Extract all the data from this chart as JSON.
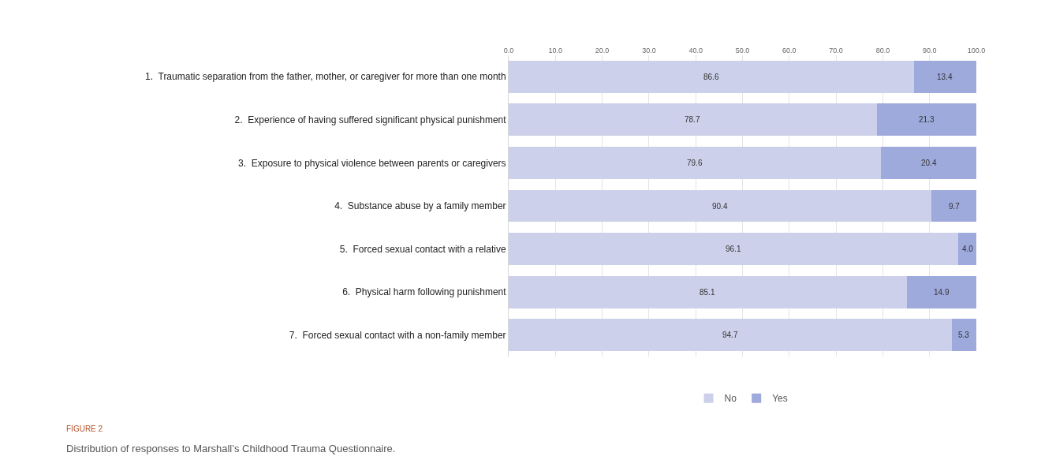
{
  "chart_data": {
    "type": "bar",
    "orientation": "horizontal",
    "stacked": true,
    "categories": [
      "1.  Traumatic separation from the father, mother, or caregiver for more than one month",
      "2.  Experience of having suffered significant physical punishment",
      "3.  Exposure to physical violence between parents or caregivers",
      "4.  Substance abuse by a family member",
      "5.  Forced sexual contact with a relative",
      "6.  Physical harm following punishment",
      "7.  Forced sexual contact with a non-family member"
    ],
    "series": [
      {
        "name": "No",
        "color": "#ccd0ea",
        "values": [
          86.6,
          78.7,
          79.6,
          90.4,
          96.1,
          85.1,
          94.7
        ],
        "value_labels": [
          "86.6",
          "78.7",
          "79.6",
          "90.4",
          "96.1",
          "85.1",
          "94.7"
        ]
      },
      {
        "name": "Yes",
        "color": "#9ea9dc",
        "values": [
          13.4,
          21.3,
          20.4,
          9.7,
          4.0,
          14.9,
          5.3
        ],
        "value_labels": [
          "13.4",
          "21.3",
          "20.4",
          "9.7",
          "4.0",
          "14.9",
          "5.3"
        ]
      }
    ],
    "xlim": [
      0,
      100
    ],
    "xticks": [
      {
        "value": 0,
        "label": "0.0"
      },
      {
        "value": 10,
        "label": "10.0"
      },
      {
        "value": 20,
        "label": "20.0"
      },
      {
        "value": 30,
        "label": "30.0"
      },
      {
        "value": 40,
        "label": "40.0"
      },
      {
        "value": 50,
        "label": "50.0"
      },
      {
        "value": 60,
        "label": "60.0"
      },
      {
        "value": 70,
        "label": "70.0"
      },
      {
        "value": 80,
        "label": "80.0"
      },
      {
        "value": 90,
        "label": "90.0"
      },
      {
        "value": 100,
        "label": "100.0"
      }
    ],
    "grid": "x",
    "legend": "bottom",
    "annotations": [
      "FIGURE 2",
      "Distribution of responses to Marshall’s Childhood Trauma Questionnaire."
    ]
  }
}
